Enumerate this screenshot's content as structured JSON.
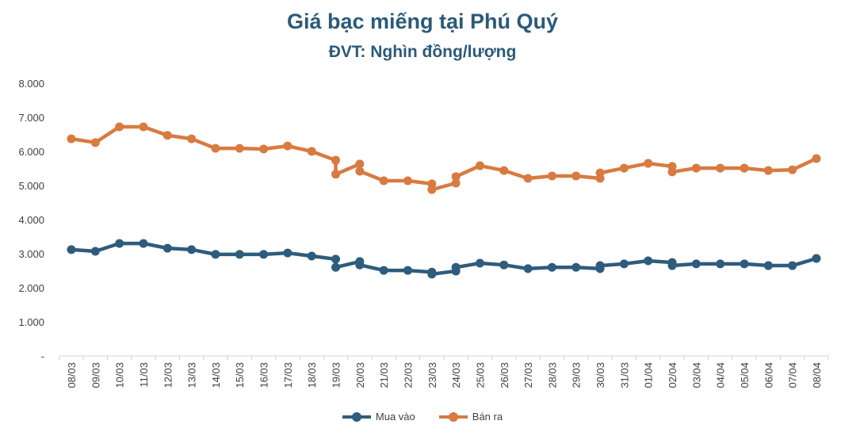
{
  "chart_data": {
    "type": "line",
    "title": "Giá bạc miếng tại Phú Quý",
    "subtitle": "ĐVT: Nghìn đồng/lượng",
    "xlabel": "",
    "ylabel": "",
    "ylim": [
      0,
      8000
    ],
    "y_ticks": [
      "-",
      "1.000",
      "2.000",
      "3.000",
      "4.000",
      "5.000",
      "6.000",
      "7.000",
      "8.000"
    ],
    "grid": false,
    "legend": "bottom",
    "categories": [
      "08/03",
      "09/03",
      "10/03",
      "11/03",
      "12/03",
      "13/03",
      "14/03",
      "15/03",
      "16/03",
      "17/03",
      "18/03",
      "19/03",
      "20/03",
      "21/03",
      "22/03",
      "23/03",
      "24/03",
      "25/03",
      "26/03",
      "27/03",
      "28/03",
      "29/03",
      "30/03",
      "31/03",
      "01/04",
      "02/04",
      "03/04",
      "04/04",
      "05/04",
      "06/04",
      "07/04",
      "08/04"
    ],
    "series": [
      {
        "name": "Mua vào",
        "color": "#2e5c7c",
        "values": [
          3120,
          3070,
          3300,
          3300,
          3160,
          3120,
          2980,
          2980,
          2980,
          3020,
          2930,
          [
            2840,
            2600
          ],
          [
            2770,
            2670
          ],
          2510,
          2510,
          [
            2460,
            2400
          ],
          [
            2490,
            2600
          ],
          2720,
          2670,
          2560,
          2600,
          2600,
          [
            2560,
            2650
          ],
          2700,
          2790,
          [
            2740,
            2650
          ],
          2700,
          2700,
          2700,
          2650,
          2650,
          2860
        ]
      },
      {
        "name": "Bán ra",
        "color": "#d97a40",
        "values": [
          6370,
          6260,
          6720,
          6720,
          6470,
          6370,
          6090,
          6090,
          6070,
          6160,
          6000,
          [
            5740,
            5330
          ],
          [
            5630,
            5420
          ],
          5140,
          5140,
          [
            5050,
            4880
          ],
          [
            5070,
            5260
          ],
          5580,
          5440,
          5210,
          5280,
          5280,
          [
            5210,
            5370
          ],
          5510,
          5650,
          [
            5560,
            5400
          ],
          5510,
          5510,
          5510,
          5440,
          5460,
          5790
        ]
      }
    ]
  }
}
